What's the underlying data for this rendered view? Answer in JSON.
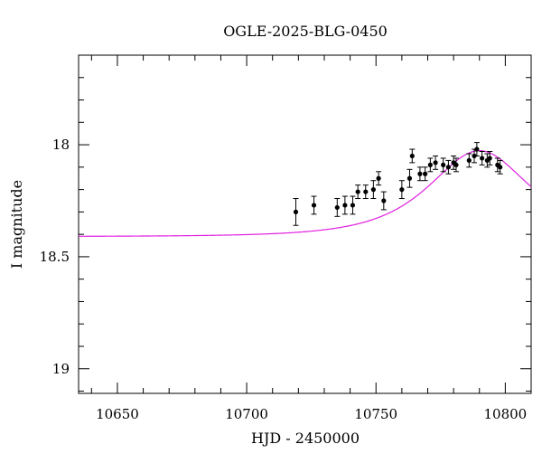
{
  "chart_data": {
    "type": "scatter",
    "title": "OGLE-2025-BLG-0450",
    "xlabel": "HJD - 2450000",
    "ylabel": "I magnitude",
    "xlim": [
      10635,
      10810
    ],
    "ylim": [
      19.11,
      17.6
    ],
    "y_inverted": true,
    "grid": false,
    "x_ticks": [
      10650,
      10700,
      10750,
      10800
    ],
    "x_tick_labels": [
      "10650",
      "10700",
      "10750",
      "10800"
    ],
    "y_ticks": [
      18,
      18.5,
      19
    ],
    "y_tick_labels": [
      "18",
      "18.5",
      "19"
    ],
    "x_minor_step": 10,
    "y_minor_step": 0.1,
    "colors": {
      "points": "#000000",
      "model": "#e020e0"
    },
    "series": [
      {
        "points": [
          {
            "x": 10719,
            "y": 18.3,
            "err": 0.06
          },
          {
            "x": 10726,
            "y": 18.27,
            "err": 0.04
          },
          {
            "x": 10735,
            "y": 18.28,
            "err": 0.04
          },
          {
            "x": 10738,
            "y": 18.27,
            "err": 0.04
          },
          {
            "x": 10741,
            "y": 18.27,
            "err": 0.04
          },
          {
            "x": 10743,
            "y": 18.21,
            "err": 0.03
          },
          {
            "x": 10746,
            "y": 18.21,
            "err": 0.03
          },
          {
            "x": 10749,
            "y": 18.2,
            "err": 0.04
          },
          {
            "x": 10751,
            "y": 18.15,
            "err": 0.03
          },
          {
            "x": 10753,
            "y": 18.25,
            "err": 0.04
          },
          {
            "x": 10760,
            "y": 18.2,
            "err": 0.04
          },
          {
            "x": 10763,
            "y": 18.15,
            "err": 0.04
          },
          {
            "x": 10764,
            "y": 18.05,
            "err": 0.03
          },
          {
            "x": 10767,
            "y": 18.13,
            "err": 0.03
          },
          {
            "x": 10769,
            "y": 18.13,
            "err": 0.03
          },
          {
            "x": 10771,
            "y": 18.09,
            "err": 0.03
          },
          {
            "x": 10773,
            "y": 18.08,
            "err": 0.03
          },
          {
            "x": 10776,
            "y": 18.09,
            "err": 0.03
          },
          {
            "x": 10778,
            "y": 18.1,
            "err": 0.03
          },
          {
            "x": 10780,
            "y": 18.08,
            "err": 0.03
          },
          {
            "x": 10781,
            "y": 18.09,
            "err": 0.03
          },
          {
            "x": 10786,
            "y": 18.07,
            "err": 0.03
          },
          {
            "x": 10788,
            "y": 18.05,
            "err": 0.03
          },
          {
            "x": 10789,
            "y": 18.02,
            "err": 0.03
          },
          {
            "x": 10791,
            "y": 18.06,
            "err": 0.03
          },
          {
            "x": 10793,
            "y": 18.07,
            "err": 0.03
          },
          {
            "x": 10794,
            "y": 18.06,
            "err": 0.03
          },
          {
            "x": 10797,
            "y": 18.09,
            "err": 0.03
          },
          {
            "x": 10798,
            "y": 18.1,
            "err": 0.03
          }
        ]
      },
      {
        "model": {
          "u0": 0.9,
          "t0": 10790,
          "tE": 25,
          "mag_base": 18.41
        }
      }
    ]
  }
}
